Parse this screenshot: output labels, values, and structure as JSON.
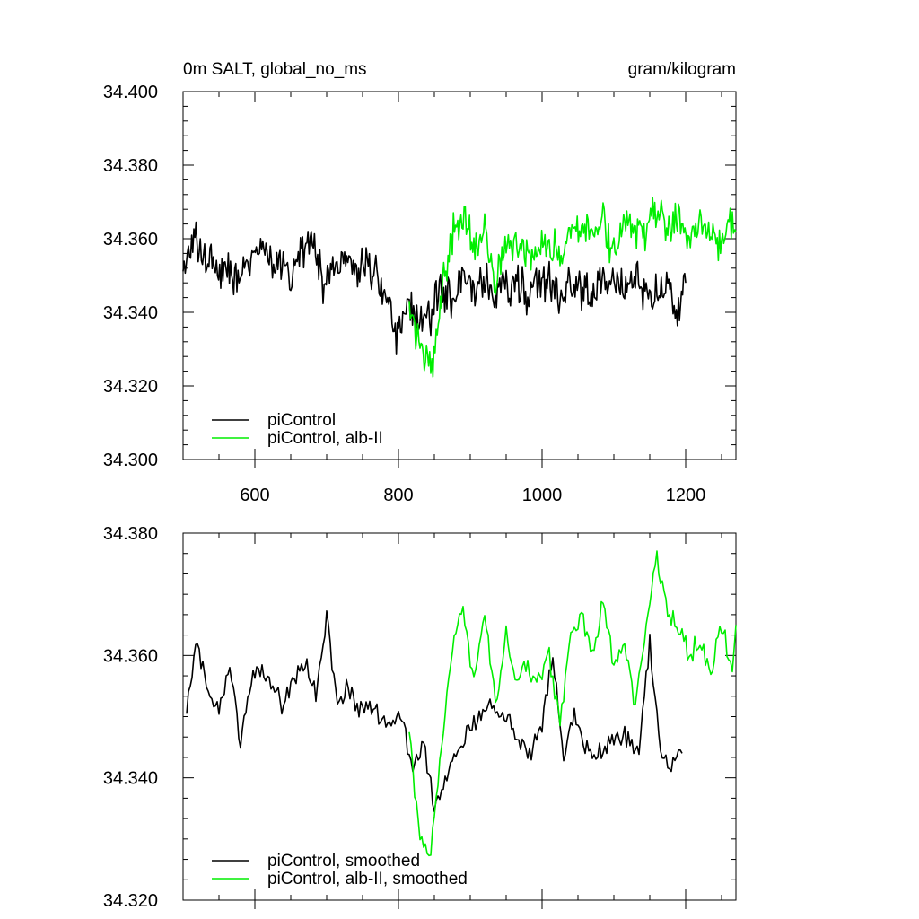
{
  "header": {
    "left_title": "0m SALT, global_no_ms",
    "right_title": "gram/kilogram"
  },
  "chart_data": [
    {
      "type": "line",
      "xlim": [
        500,
        1270
      ],
      "ylim": [
        34.3,
        34.4
      ],
      "xticks": [
        600,
        800,
        1000,
        1200
      ],
      "xtick_labels": [
        "600",
        "800",
        "1000",
        "1200"
      ],
      "yticks": [
        34.3,
        34.32,
        34.34,
        34.36,
        34.38,
        34.4
      ],
      "ytick_labels": [
        "34.300",
        "34.320",
        "34.340",
        "34.360",
        "34.380",
        "34.400"
      ],
      "grid": false,
      "legend_position": "bottom-left",
      "series": [
        {
          "name": "piControl",
          "color": "#000000",
          "x": [
            500,
            515,
            530,
            545,
            560,
            575,
            590,
            605,
            620,
            635,
            650,
            665,
            680,
            695,
            710,
            725,
            740,
            755,
            770,
            785,
            800,
            815,
            830,
            845,
            860,
            875,
            890,
            905,
            920,
            935,
            950,
            965,
            980,
            995,
            1010,
            1025,
            1040,
            1055,
            1070,
            1085,
            1100,
            1115,
            1130,
            1145,
            1160,
            1175,
            1190,
            1200
          ],
          "y": [
            34.352,
            34.36,
            34.355,
            34.352,
            34.353,
            34.35,
            34.352,
            34.356,
            34.354,
            34.355,
            34.35,
            34.357,
            34.36,
            34.348,
            34.351,
            34.353,
            34.351,
            34.353,
            34.35,
            34.341,
            34.333,
            34.342,
            34.337,
            34.34,
            34.346,
            34.344,
            34.348,
            34.347,
            34.35,
            34.346,
            34.348,
            34.347,
            34.345,
            34.349,
            34.348,
            34.342,
            34.347,
            34.346,
            34.345,
            34.348,
            34.35,
            34.347,
            34.349,
            34.344,
            34.345,
            34.347,
            34.34,
            34.348
          ]
        },
        {
          "name": "piControl, alb-II",
          "color": "#00ee00",
          "x": [
            815,
            830,
            845,
            860,
            875,
            890,
            905,
            920,
            935,
            950,
            965,
            980,
            995,
            1010,
            1025,
            1040,
            1055,
            1070,
            1085,
            1100,
            1115,
            1130,
            1145,
            1160,
            1175,
            1190,
            1205,
            1220,
            1235,
            1250,
            1265,
            1270
          ],
          "y": [
            34.342,
            34.33,
            34.325,
            34.345,
            34.362,
            34.364,
            34.357,
            34.365,
            34.35,
            34.356,
            34.358,
            34.356,
            34.357,
            34.361,
            34.354,
            34.363,
            34.364,
            34.362,
            34.365,
            34.356,
            34.367,
            34.361,
            34.362,
            34.368,
            34.362,
            34.365,
            34.36,
            34.366,
            34.362,
            34.36,
            34.364,
            34.362
          ]
        }
      ]
    },
    {
      "type": "line",
      "xlim": [
        500,
        1270
      ],
      "ylim": [
        34.32,
        34.38
      ],
      "xticks": [
        600,
        800,
        1000,
        1200
      ],
      "yticks": [
        34.32,
        34.34,
        34.36,
        34.38
      ],
      "ytick_labels": [
        "34.320",
        "34.340",
        "34.360",
        "34.380"
      ],
      "grid": false,
      "legend_position": "bottom-left",
      "series": [
        {
          "name": "piControl, smoothed",
          "color": "#000000",
          "x": [
            505,
            520,
            535,
            550,
            565,
            580,
            595,
            610,
            625,
            640,
            655,
            670,
            685,
            700,
            715,
            730,
            745,
            760,
            775,
            790,
            805,
            820,
            835,
            850,
            865,
            880,
            895,
            910,
            925,
            940,
            955,
            970,
            985,
            1000,
            1015,
            1030,
            1045,
            1060,
            1075,
            1090,
            1105,
            1120,
            1135,
            1150,
            1165,
            1180,
            1195
          ],
          "y": [
            34.351,
            34.362,
            34.355,
            34.35,
            34.359,
            34.346,
            34.356,
            34.358,
            34.355,
            34.352,
            34.356,
            34.359,
            34.354,
            34.366,
            34.352,
            34.355,
            34.351,
            34.352,
            34.349,
            34.348,
            34.35,
            34.341,
            34.346,
            34.335,
            34.34,
            34.344,
            34.347,
            34.35,
            34.352,
            34.35,
            34.349,
            34.345,
            34.344,
            34.349,
            34.36,
            34.343,
            34.35,
            34.345,
            34.343,
            34.345,
            34.347,
            34.346,
            34.344,
            34.362,
            34.344,
            34.342,
            34.344
          ]
        },
        {
          "name": "piControl, alb-II, smoothed",
          "color": "#00ee00",
          "x": [
            815,
            830,
            845,
            860,
            875,
            890,
            905,
            920,
            935,
            950,
            965,
            980,
            995,
            1010,
            1025,
            1040,
            1055,
            1070,
            1085,
            1100,
            1115,
            1130,
            1145,
            1160,
            1175,
            1190,
            1205,
            1220,
            1235,
            1250,
            1265,
            1270
          ],
          "y": [
            34.347,
            34.33,
            34.328,
            34.345,
            34.362,
            34.368,
            34.355,
            34.367,
            34.352,
            34.364,
            34.355,
            34.358,
            34.356,
            34.36,
            34.349,
            34.364,
            34.366,
            34.36,
            34.369,
            34.358,
            34.362,
            34.352,
            34.364,
            34.376,
            34.367,
            34.365,
            34.36,
            34.363,
            34.357,
            34.365,
            34.358,
            34.365
          ]
        }
      ]
    }
  ]
}
